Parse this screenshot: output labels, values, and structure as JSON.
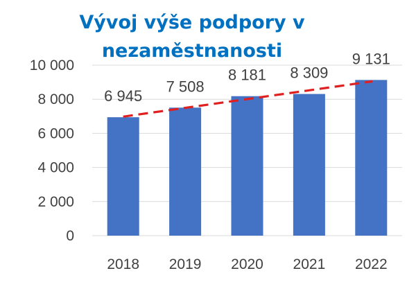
{
  "chart_data": {
    "type": "bar",
    "title_lines": [
      "Vývoj výše podpory v",
      "nezaměstnanosti"
    ],
    "categories": [
      "2018",
      "2019",
      "2020",
      "2021",
      "2022"
    ],
    "values": [
      6945,
      7508,
      8181,
      8309,
      9131
    ],
    "value_labels": [
      "6 945",
      "7 508",
      "8 181",
      "8 309",
      "9 131"
    ],
    "ylim": [
      0,
      10000
    ],
    "yticks": [
      0,
      2000,
      4000,
      6000,
      8000,
      10000
    ],
    "ytick_labels": [
      "0",
      "2 000",
      "4 000",
      "6 000",
      "8 000",
      "10 000"
    ],
    "grid": true,
    "trendline": {
      "type": "linear",
      "style": "dashed"
    },
    "colors": {
      "bar": "#4472C4",
      "trendline": "#E02020",
      "title": "#0070C0",
      "grid": "#D9D9D9"
    }
  }
}
